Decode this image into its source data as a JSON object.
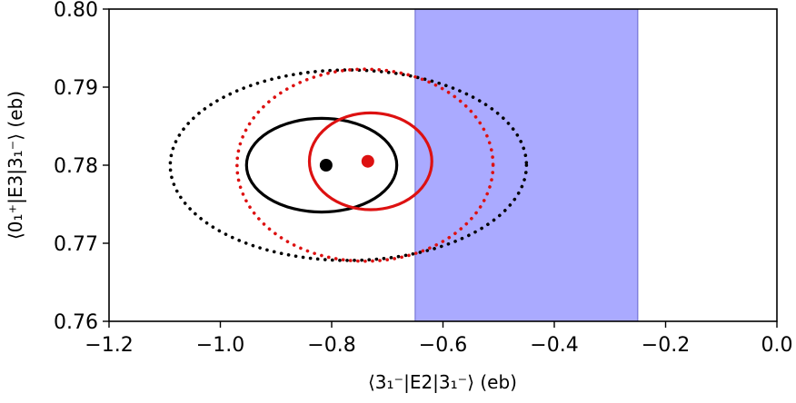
{
  "chart_data": {
    "type": "scatter",
    "title": "",
    "xlabel": "⟨3₁⁻|E2|3₁⁻⟩ (eb)",
    "ylabel": "⟨0₁⁺|E3|3₁⁻⟩ (eb)",
    "xlim": [
      -1.2,
      0.0
    ],
    "ylim": [
      0.76,
      0.8
    ],
    "xticks": [
      -1.2,
      -1.0,
      -0.8,
      -0.6,
      -0.4,
      -0.2,
      0.0
    ],
    "yticks": [
      0.76,
      0.77,
      0.78,
      0.79,
      0.8
    ],
    "xtick_labels": [
      "−1.2",
      "−1.0",
      "−0.8",
      "−0.6",
      "−0.4",
      "−0.2",
      "0.0"
    ],
    "ytick_labels": [
      "0.76",
      "0.77",
      "0.78",
      "0.79",
      "0.80"
    ],
    "grid": false,
    "band": {
      "x": [
        -0.65,
        -0.25
      ],
      "color": "#aaaaff",
      "edge_color": "#6666cc"
    },
    "points": [
      {
        "x": -0.81,
        "y": 0.78,
        "color": "#000000"
      },
      {
        "x": -0.735,
        "y": 0.7805,
        "color": "#dd1111"
      }
    ],
    "ellipses": [
      {
        "cx": -0.818,
        "cy": 0.78,
        "rx": 0.135,
        "ry": 0.006,
        "color": "#000000",
        "style": "solid"
      },
      {
        "cx": -0.77,
        "cy": 0.78,
        "rx": 0.32,
        "ry": 0.0122,
        "color": "#000000",
        "style": "dotted"
      },
      {
        "cx": -0.73,
        "cy": 0.7805,
        "rx": 0.11,
        "ry": 0.0062,
        "color": "#dd1111",
        "style": "solid"
      },
      {
        "cx": -0.74,
        "cy": 0.78,
        "rx": 0.23,
        "ry": 0.0123,
        "color": "#dd1111",
        "style": "dotted"
      }
    ]
  }
}
